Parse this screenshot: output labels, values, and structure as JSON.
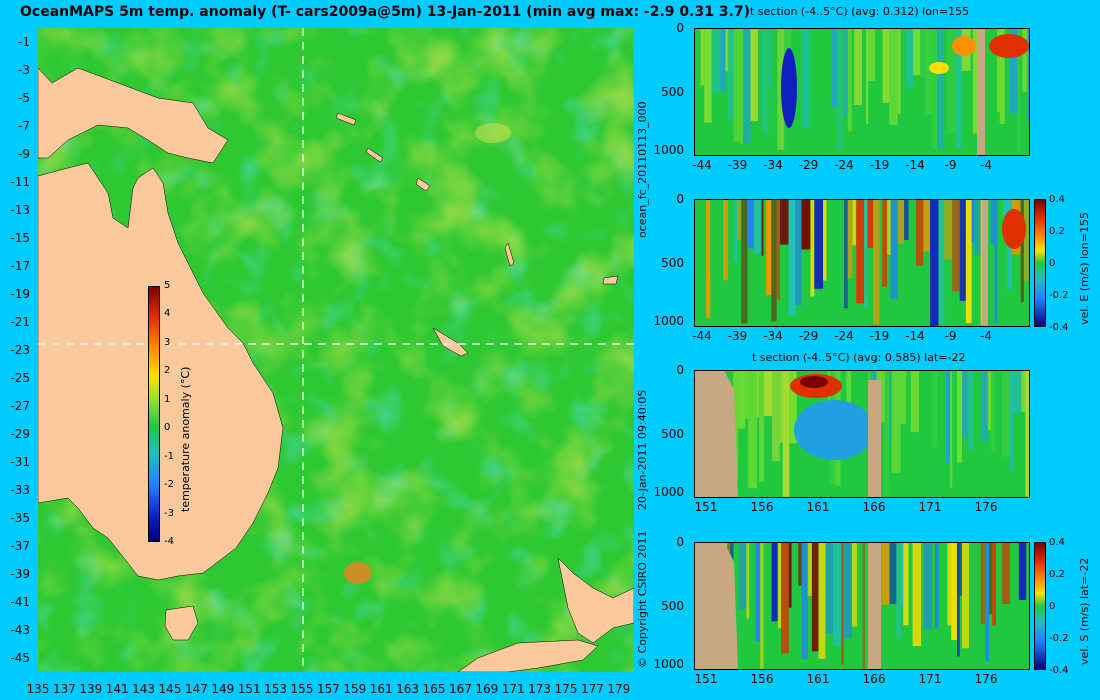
{
  "main_map": {
    "title": "OceanMAPS 5m temp. anomaly (T- cars2009a@5m) 13-Jan-2011 (min avg max: -2.9 0.31 3.7)",
    "y_ticks": [
      "-1",
      "-3",
      "-5",
      "-7",
      "-9",
      "-11",
      "-13",
      "-15",
      "-17",
      "-19",
      "-21",
      "-23",
      "-25",
      "-27",
      "-29",
      "-31",
      "-33",
      "-35",
      "-37",
      "-39",
      "-41",
      "-43",
      "-45"
    ],
    "x_ticks": [
      "135",
      "137",
      "139",
      "141",
      "143",
      "145",
      "147",
      "149",
      "151",
      "153",
      "155",
      "157",
      "159",
      "161",
      "163",
      "165",
      "167",
      "169",
      "171",
      "173",
      "175",
      "177",
      "179"
    ],
    "colorbar": {
      "label": "temperature anomaly (°C)",
      "ticks": [
        "5",
        "4",
        "3",
        "2",
        "1",
        "0",
        "-1",
        "-2",
        "-3",
        "-4"
      ]
    },
    "section_lines": {
      "lon": 155,
      "lat": -22
    }
  },
  "panels": [
    {
      "title": "t section (-4..5°C) (avg: 0.312) lon=155",
      "y_ticks": [
        "0",
        "500",
        "1000"
      ],
      "x_ticks": [
        "-44",
        "-39",
        "-34",
        "-29",
        "-24",
        "-19",
        "-14",
        "-9",
        "-4"
      ],
      "has_colorbar": false
    },
    {
      "title": "",
      "y_ticks": [
        "0",
        "500",
        "1000"
      ],
      "x_ticks": [
        "-44",
        "-39",
        "-34",
        "-29",
        "-24",
        "-19",
        "-14",
        "-9",
        "-4"
      ],
      "has_colorbar": true,
      "cb_label": "vel. E (m/s) lon=155",
      "cb_ticks": [
        "0.4",
        "0.2",
        "0",
        "-0.2",
        "-0.4"
      ]
    },
    {
      "title": "t section (-4..5°C) (avg: 0.585) lat=-22",
      "y_ticks": [
        "0",
        "500",
        "1000"
      ],
      "x_ticks": [
        "151",
        "156",
        "161",
        "166",
        "171",
        "176"
      ],
      "has_colorbar": false
    },
    {
      "title": "",
      "y_ticks": [
        "0",
        "500",
        "1000"
      ],
      "x_ticks": [
        "151",
        "156",
        "161",
        "166",
        "171",
        "176"
      ],
      "has_colorbar": true,
      "cb_label": "vel. S (m/s) lat=-22",
      "cb_ticks": [
        "0.4",
        "0.2",
        "0",
        "-0.2",
        "-0.4"
      ]
    }
  ],
  "side_texts": {
    "forecast_id": "ocean_fc_20110113_000",
    "run_time": "20-Jan-2011 09:40:05",
    "copyright": "© Copyright CSIRO 2011"
  },
  "colors": {
    "ocean_green": "#2ec832",
    "land": "#fbc99b",
    "section_land": "#c8a882",
    "background": "#00ccff"
  },
  "chart_data": [
    {
      "type": "heatmap",
      "title": "OceanMAPS 5m temp. anomaly (T- cars2009a@5m) 13-Jan-2011 (min avg max: -2.9 0.31 3.7)",
      "xlim": [
        135,
        180
      ],
      "ylim": [
        -45,
        0
      ],
      "value_range": [
        -4,
        5
      ],
      "stats": {
        "min": -2.9,
        "avg": 0.31,
        "max": 3.7
      },
      "colorbar_label": "temperature anomaly (°C)"
    },
    {
      "type": "heatmap",
      "title": "t section (-4..5°C) (avg: 0.312) lon=155",
      "xlim": [
        -45,
        0
      ],
      "ylim": [
        1000,
        0
      ],
      "avg": 0.312
    },
    {
      "type": "heatmap",
      "title": "vel. E (m/s) lon=155",
      "xlim": [
        -45,
        0
      ],
      "ylim": [
        1000,
        0
      ],
      "value_range": [
        -0.4,
        0.4
      ]
    },
    {
      "type": "heatmap",
      "title": "t section (-4..5°C) (avg: 0.585) lat=-22",
      "xlim": [
        150,
        180
      ],
      "ylim": [
        1000,
        0
      ],
      "avg": 0.585
    },
    {
      "type": "heatmap",
      "title": "vel. S (m/s) lat=-22",
      "xlim": [
        150,
        180
      ],
      "ylim": [
        1000,
        0
      ],
      "value_range": [
        -0.4,
        0.4
      ]
    }
  ]
}
